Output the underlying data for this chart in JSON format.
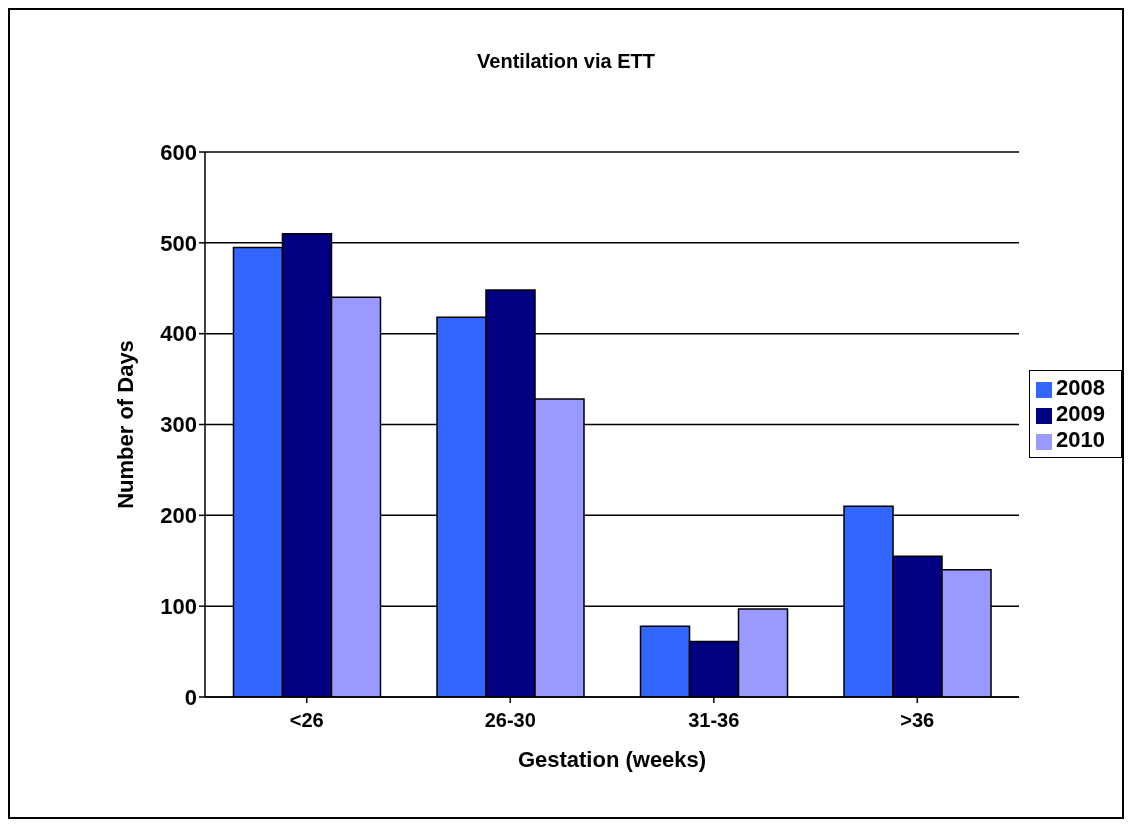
{
  "chart_data": {
    "type": "bar",
    "title": "Ventilation via ETT",
    "xlabel": "Gestation (weeks)",
    "ylabel": "Number of Days",
    "categories": [
      "<26",
      "26-30",
      "31-36",
      ">36"
    ],
    "series": [
      {
        "name": "2008",
        "color": "#3366ff",
        "values": [
          495,
          418,
          78,
          210
        ]
      },
      {
        "name": "2009",
        "color": "#000080",
        "values": [
          510,
          448,
          61,
          155
        ]
      },
      {
        "name": "2010",
        "color": "#9999ff",
        "values": [
          440,
          328,
          97,
          140
        ]
      }
    ],
    "ylim": [
      0,
      600
    ],
    "yticks": [
      0,
      100,
      200,
      300,
      400,
      500,
      600
    ],
    "grid": "y",
    "legend": "right"
  }
}
